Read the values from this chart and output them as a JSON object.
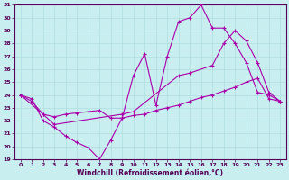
{
  "xlabel": "Windchill (Refroidissement éolien,°C)",
  "bg_color": "#c8eef0",
  "line_color": "#aa00aa",
  "grid_color": "#b0dde0",
  "xlim": [
    -0.5,
    23.5
  ],
  "ylim": [
    19,
    31
  ],
  "xticks": [
    0,
    1,
    2,
    3,
    4,
    5,
    6,
    7,
    8,
    9,
    10,
    11,
    12,
    13,
    14,
    15,
    16,
    17,
    18,
    19,
    20,
    21,
    22,
    23
  ],
  "yticks": [
    19,
    20,
    21,
    22,
    23,
    24,
    25,
    26,
    27,
    28,
    29,
    30,
    31
  ],
  "series1_x": [
    0,
    1,
    2,
    3,
    4,
    5,
    6,
    7,
    8,
    9,
    10,
    11,
    12,
    13,
    14,
    15,
    16,
    17,
    18,
    19,
    20,
    21,
    22,
    23
  ],
  "series1_y": [
    24,
    23.7,
    22.0,
    21.5,
    20.8,
    20.3,
    19.9,
    19.0,
    20.5,
    22.2,
    25.5,
    27.2,
    23.2,
    27.0,
    29.7,
    30.0,
    31.0,
    29.2,
    29.2,
    28.0,
    26.5,
    24.2,
    24.0,
    23.5
  ],
  "series2_x": [
    0,
    2,
    3,
    9,
    10,
    14,
    15,
    17,
    18,
    19,
    20,
    21,
    22,
    23
  ],
  "series2_y": [
    24,
    22.5,
    21.7,
    22.5,
    22.7,
    25.5,
    25.7,
    26.3,
    28.0,
    29.0,
    28.2,
    26.5,
    24.2,
    23.5
  ],
  "series3_x": [
    0,
    1,
    2,
    3,
    4,
    5,
    6,
    7,
    8,
    9,
    10,
    11,
    12,
    13,
    14,
    15,
    16,
    17,
    18,
    19,
    20,
    21,
    22,
    23
  ],
  "series3_y": [
    24,
    23.5,
    22.5,
    22.3,
    22.5,
    22.6,
    22.7,
    22.8,
    22.2,
    22.2,
    22.4,
    22.5,
    22.8,
    23.0,
    23.2,
    23.5,
    23.8,
    24.0,
    24.3,
    24.6,
    25.0,
    25.3,
    23.7,
    23.5
  ]
}
